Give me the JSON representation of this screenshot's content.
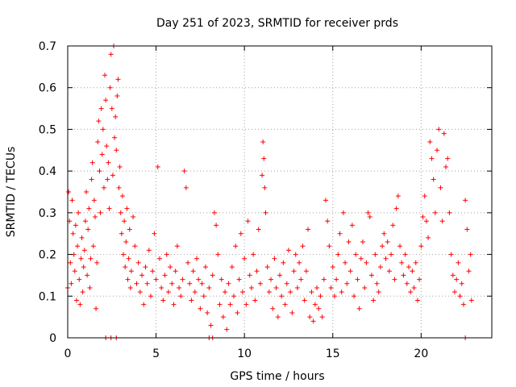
{
  "chart_data": {
    "type": "scatter",
    "title": "Day 251 of 2023, SRMTID for receiver prds",
    "xlabel": "GPS time / hours",
    "ylabel": "SRMTID / TECUs",
    "xlim": [
      0,
      24
    ],
    "ylim": [
      0,
      0.7
    ],
    "xticks": [
      0,
      5,
      10,
      15,
      20
    ],
    "xtick_labels": [
      "0",
      "5",
      "10",
      "15",
      "20"
    ],
    "yticks": [
      0,
      0.1,
      0.2,
      0.3,
      0.4,
      0.5,
      0.6,
      0.7
    ],
    "ytick_labels": [
      "0",
      "0.1",
      "0.2",
      "0.3",
      "0.4",
      "0.5",
      "0.6",
      "0.7"
    ],
    "grid": true,
    "marker": "+",
    "color": "#ff0000",
    "series": [
      {
        "name": "prds",
        "points": [
          [
            0.0,
            0.12
          ],
          [
            0.05,
            0.35
          ],
          [
            0.1,
            0.28
          ],
          [
            0.15,
            0.18
          ],
          [
            0.2,
            0.13
          ],
          [
            0.25,
            0.33
          ],
          [
            0.3,
            0.25
          ],
          [
            0.35,
            0.2
          ],
          [
            0.4,
            0.16
          ],
          [
            0.45,
            0.27
          ],
          [
            0.5,
            0.09
          ],
          [
            0.55,
            0.22
          ],
          [
            0.6,
            0.3
          ],
          [
            0.65,
            0.14
          ],
          [
            0.7,
            0.08
          ],
          [
            0.75,
            0.19
          ],
          [
            0.8,
            0.24
          ],
          [
            0.85,
            0.11
          ],
          [
            0.9,
            0.17
          ],
          [
            0.95,
            0.21
          ],
          [
            1.0,
            0.28
          ],
          [
            1.05,
            0.35
          ],
          [
            1.1,
            0.15
          ],
          [
            1.15,
            0.26
          ],
          [
            1.2,
            0.31
          ],
          [
            1.25,
            0.12
          ],
          [
            1.3,
            0.19
          ],
          [
            1.35,
            0.38
          ],
          [
            1.4,
            0.42
          ],
          [
            1.45,
            0.22
          ],
          [
            1.5,
            0.33
          ],
          [
            1.55,
            0.29
          ],
          [
            1.6,
            0.07
          ],
          [
            1.65,
            0.18
          ],
          [
            1.7,
            0.47
          ],
          [
            1.75,
            0.52
          ],
          [
            1.8,
            0.4
          ],
          [
            1.85,
            0.3
          ],
          [
            1.9,
            0.55
          ],
          [
            1.95,
            0.44
          ],
          [
            2.0,
            0.5
          ],
          [
            2.05,
            0.36
          ],
          [
            2.1,
            0.63
          ],
          [
            2.15,
            0.57
          ],
          [
            2.2,
            0.46
          ],
          [
            2.25,
            0.38
          ],
          [
            2.3,
            0.42
          ],
          [
            2.35,
            0.31
          ],
          [
            2.4,
            0.6
          ],
          [
            2.45,
            0.68
          ],
          [
            2.5,
            0.55
          ],
          [
            2.55,
            0.39
          ],
          [
            2.6,
            0.7
          ],
          [
            2.65,
            0.48
          ],
          [
            2.7,
            0.53
          ],
          [
            2.75,
            0.45
          ],
          [
            2.8,
            0.58
          ],
          [
            2.85,
            0.62
          ],
          [
            2.9,
            0.36
          ],
          [
            2.95,
            0.41
          ],
          [
            3.0,
            0.3
          ],
          [
            3.05,
            0.25
          ],
          [
            3.1,
            0.34
          ],
          [
            3.15,
            0.2
          ],
          [
            3.2,
            0.28
          ],
          [
            3.25,
            0.17
          ],
          [
            3.3,
            0.23
          ],
          [
            3.35,
            0.31
          ],
          [
            3.4,
            0.14
          ],
          [
            3.45,
            0.19
          ],
          [
            3.5,
            0.26
          ],
          [
            3.55,
            0.12
          ],
          [
            3.6,
            0.16
          ],
          [
            3.7,
            0.29
          ],
          [
            3.8,
            0.22
          ],
          [
            3.9,
            0.13
          ],
          [
            4.0,
            0.18
          ],
          [
            4.1,
            0.11
          ],
          [
            4.2,
            0.15
          ],
          [
            4.3,
            0.08
          ],
          [
            4.4,
            0.17
          ],
          [
            4.5,
            0.13
          ],
          [
            4.6,
            0.21
          ],
          [
            4.7,
            0.1
          ],
          [
            4.8,
            0.16
          ],
          [
            4.9,
            0.25
          ],
          [
            5.0,
            0.14
          ],
          [
            5.1,
            0.41
          ],
          [
            5.2,
            0.19
          ],
          [
            5.3,
            0.12
          ],
          [
            5.4,
            0.09
          ],
          [
            5.5,
            0.15
          ],
          [
            5.6,
            0.2
          ],
          [
            5.7,
            0.11
          ],
          [
            5.8,
            0.17
          ],
          [
            5.9,
            0.13
          ],
          [
            6.0,
            0.08
          ],
          [
            6.1,
            0.16
          ],
          [
            6.2,
            0.22
          ],
          [
            6.3,
            0.12
          ],
          [
            6.4,
            0.1
          ],
          [
            6.5,
            0.14
          ],
          [
            6.6,
            0.4
          ],
          [
            6.7,
            0.36
          ],
          [
            6.8,
            0.18
          ],
          [
            6.9,
            0.13
          ],
          [
            7.0,
            0.09
          ],
          [
            7.1,
            0.16
          ],
          [
            7.2,
            0.11
          ],
          [
            7.3,
            0.19
          ],
          [
            7.4,
            0.14
          ],
          [
            7.5,
            0.07
          ],
          [
            7.6,
            0.13
          ],
          [
            7.7,
            0.1
          ],
          [
            7.8,
            0.17
          ],
          [
            7.9,
            0.06
          ],
          [
            8.0,
            0.12
          ],
          [
            8.1,
            0.03
          ],
          [
            8.2,
            0.15
          ],
          [
            8.3,
            0.3
          ],
          [
            8.4,
            0.27
          ],
          [
            8.5,
            0.2
          ],
          [
            8.6,
            0.08
          ],
          [
            8.7,
            0.14
          ],
          [
            8.8,
            0.05
          ],
          [
            8.9,
            0.11
          ],
          [
            9.0,
            0.02
          ],
          [
            9.1,
            0.13
          ],
          [
            9.2,
            0.08
          ],
          [
            9.3,
            0.17
          ],
          [
            9.4,
            0.1
          ],
          [
            9.5,
            0.22
          ],
          [
            9.6,
            0.06
          ],
          [
            9.7,
            0.14
          ],
          [
            9.8,
            0.25
          ],
          [
            9.9,
            0.11
          ],
          [
            10.0,
            0.19
          ],
          [
            10.1,
            0.08
          ],
          [
            10.2,
            0.28
          ],
          [
            10.3,
            0.15
          ],
          [
            10.4,
            0.12
          ],
          [
            10.5,
            0.2
          ],
          [
            10.6,
            0.09
          ],
          [
            10.7,
            0.16
          ],
          [
            10.8,
            0.26
          ],
          [
            10.9,
            0.13
          ],
          [
            11.0,
            0.39
          ],
          [
            11.05,
            0.47
          ],
          [
            11.1,
            0.43
          ],
          [
            11.15,
            0.36
          ],
          [
            11.2,
            0.3
          ],
          [
            11.3,
            0.17
          ],
          [
            11.4,
            0.11
          ],
          [
            11.5,
            0.14
          ],
          [
            11.6,
            0.07
          ],
          [
            11.7,
            0.19
          ],
          [
            11.8,
            0.12
          ],
          [
            11.9,
            0.05
          ],
          [
            12.0,
            0.15
          ],
          [
            12.1,
            0.1
          ],
          [
            12.2,
            0.18
          ],
          [
            12.3,
            0.08
          ],
          [
            12.4,
            0.13
          ],
          [
            12.5,
            0.21
          ],
          [
            12.6,
            0.11
          ],
          [
            12.7,
            0.06
          ],
          [
            12.8,
            0.16
          ],
          [
            12.9,
            0.2
          ],
          [
            13.0,
            0.12
          ],
          [
            13.1,
            0.18
          ],
          [
            13.2,
            0.14
          ],
          [
            13.3,
            0.22
          ],
          [
            13.4,
            0.09
          ],
          [
            13.5,
            0.16
          ],
          [
            13.6,
            0.26
          ],
          [
            13.7,
            0.05
          ],
          [
            13.8,
            0.11
          ],
          [
            13.9,
            0.04
          ],
          [
            14.0,
            0.08
          ],
          [
            14.1,
            0.12
          ],
          [
            14.2,
            0.07
          ],
          [
            14.3,
            0.1
          ],
          [
            14.4,
            0.05
          ],
          [
            14.5,
            0.14
          ],
          [
            14.6,
            0.33
          ],
          [
            14.7,
            0.28
          ],
          [
            14.8,
            0.22
          ],
          [
            14.9,
            0.12
          ],
          [
            15.0,
            0.17
          ],
          [
            15.1,
            0.1
          ],
          [
            15.2,
            0.14
          ],
          [
            15.3,
            0.2
          ],
          [
            15.4,
            0.25
          ],
          [
            15.5,
            0.11
          ],
          [
            15.6,
            0.3
          ],
          [
            15.7,
            0.18
          ],
          [
            15.8,
            0.13
          ],
          [
            15.9,
            0.23
          ],
          [
            16.0,
            0.16
          ],
          [
            16.1,
            0.27
          ],
          [
            16.2,
            0.1
          ],
          [
            16.3,
            0.2
          ],
          [
            16.4,
            0.14
          ],
          [
            16.5,
            0.07
          ],
          [
            16.6,
            0.19
          ],
          [
            16.7,
            0.23
          ],
          [
            16.8,
            0.12
          ],
          [
            16.9,
            0.18
          ],
          [
            17.0,
            0.3
          ],
          [
            17.1,
            0.29
          ],
          [
            17.2,
            0.15
          ],
          [
            17.3,
            0.09
          ],
          [
            17.4,
            0.2
          ],
          [
            17.5,
            0.13
          ],
          [
            17.6,
            0.11
          ],
          [
            17.7,
            0.17
          ],
          [
            17.8,
            0.22
          ],
          [
            17.9,
            0.25
          ],
          [
            18.0,
            0.19
          ],
          [
            18.1,
            0.23
          ],
          [
            18.2,
            0.16
          ],
          [
            18.3,
            0.2
          ],
          [
            18.4,
            0.27
          ],
          [
            18.5,
            0.14
          ],
          [
            18.6,
            0.31
          ],
          [
            18.7,
            0.34
          ],
          [
            18.8,
            0.22
          ],
          [
            18.9,
            0.18
          ],
          [
            19.0,
            0.15
          ],
          [
            19.1,
            0.2
          ],
          [
            19.2,
            0.13
          ],
          [
            19.3,
            0.17
          ],
          [
            19.4,
            0.11
          ],
          [
            19.5,
            0.16
          ],
          [
            19.6,
            0.12
          ],
          [
            19.7,
            0.18
          ],
          [
            19.8,
            0.09
          ],
          [
            19.9,
            0.14
          ],
          [
            20.0,
            0.22
          ],
          [
            20.1,
            0.29
          ],
          [
            20.2,
            0.34
          ],
          [
            20.3,
            0.28
          ],
          [
            20.4,
            0.24
          ],
          [
            20.5,
            0.47
          ],
          [
            20.6,
            0.43
          ],
          [
            20.7,
            0.38
          ],
          [
            20.8,
            0.3
          ],
          [
            20.9,
            0.45
          ],
          [
            21.0,
            0.5
          ],
          [
            21.1,
            0.36
          ],
          [
            21.2,
            0.28
          ],
          [
            21.3,
            0.49
          ],
          [
            21.4,
            0.41
          ],
          [
            21.5,
            0.43
          ],
          [
            21.6,
            0.3
          ],
          [
            21.7,
            0.2
          ],
          [
            21.8,
            0.15
          ],
          [
            21.9,
            0.11
          ],
          [
            22.0,
            0.14
          ],
          [
            22.1,
            0.18
          ],
          [
            22.2,
            0.1
          ],
          [
            22.3,
            0.13
          ],
          [
            22.4,
            0.08
          ],
          [
            22.5,
            0.33
          ],
          [
            22.6,
            0.26
          ],
          [
            22.7,
            0.16
          ],
          [
            22.8,
            0.2
          ],
          [
            22.85,
            0.09
          ],
          [
            2.15,
            0.0
          ],
          [
            2.45,
            0.0
          ],
          [
            2.75,
            0.0
          ],
          [
            8.0,
            0.0
          ],
          [
            8.2,
            0.0
          ],
          [
            22.5,
            0.0
          ]
        ]
      }
    ]
  }
}
